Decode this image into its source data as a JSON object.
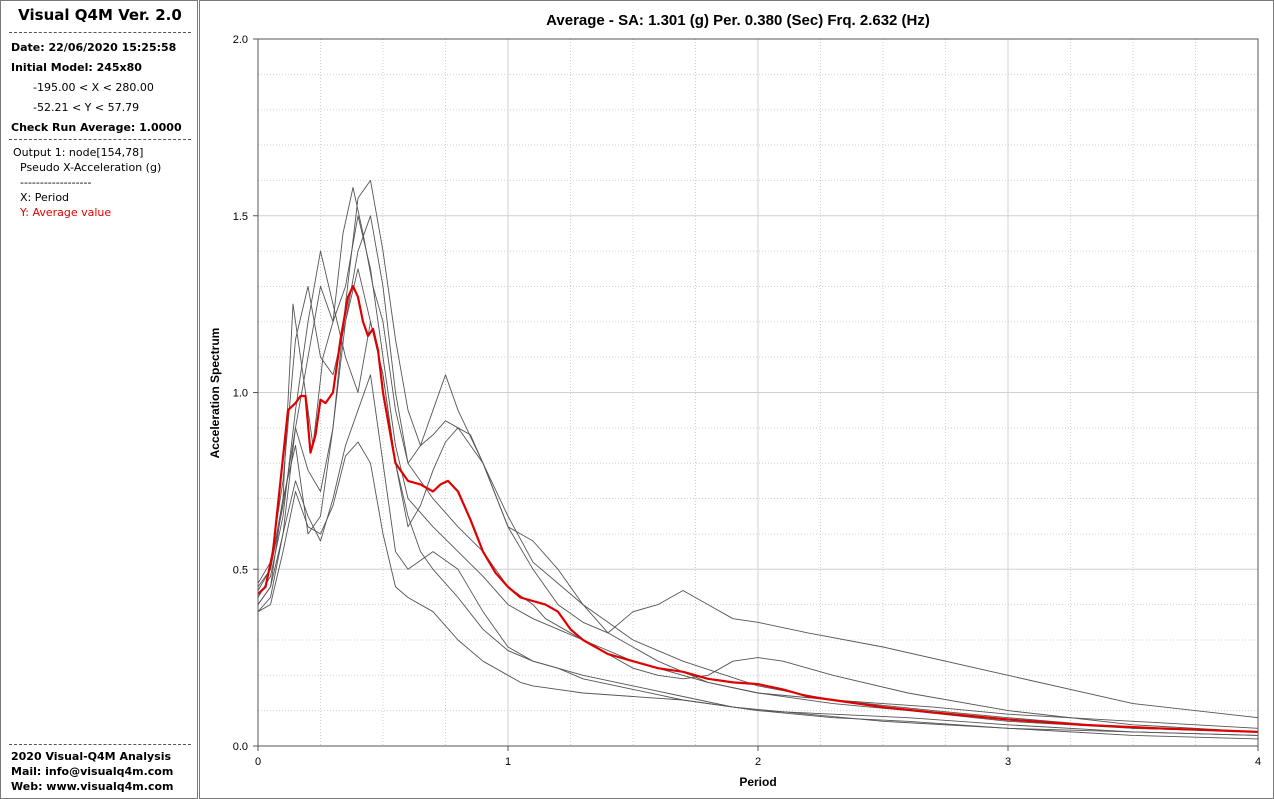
{
  "sidebar": {
    "title": "Visual Q4M Ver. 2.0",
    "date": "Date: 22/06/2020 15:25:58",
    "model": "Initial Model: 245x80",
    "x_range": "-195.00 < X < 280.00",
    "y_range": "-52.21 < Y < 57.79",
    "check_run": "Check Run Average: 1.0000",
    "output": "Output 1: node[154,78]",
    "output_type": "Pseudo X-Acceleration (g)",
    "divider": "------------------",
    "x_label": "X: Period",
    "y_label": "Y: Average value",
    "footer_copyright": "2020 Visual-Q4M Analysis",
    "footer_mail": "Mail: info@visualq4m.com",
    "footer_web": "Web: www.visualq4m.com"
  },
  "colors": {
    "average": "#e00000",
    "records": "#555555",
    "grid": "#d0d0d0"
  },
  "chart_data": {
    "type": "line",
    "title": "Average - SA: 1.301 (g) Per. 0.380 (Sec) Frq. 2.632 (Hz)",
    "xlabel": "Period",
    "ylabel": "Acceleration Spectrum",
    "xlim": [
      0,
      4
    ],
    "ylim": [
      0,
      2
    ],
    "xticks": [
      "0",
      "1",
      "2",
      "3",
      "4"
    ],
    "yticks": [
      "0.0",
      "0.5",
      "1.0",
      "1.5",
      "2.0"
    ],
    "grid": true,
    "average": {
      "x": [
        0,
        0.03,
        0.06,
        0.09,
        0.12,
        0.15,
        0.17,
        0.19,
        0.21,
        0.23,
        0.25,
        0.27,
        0.3,
        0.33,
        0.36,
        0.38,
        0.4,
        0.42,
        0.44,
        0.46,
        0.48,
        0.5,
        0.55,
        0.6,
        0.65,
        0.7,
        0.73,
        0.76,
        0.8,
        0.85,
        0.9,
        0.95,
        1.0,
        1.05,
        1.1,
        1.15,
        1.2,
        1.25,
        1.3,
        1.4,
        1.5,
        1.6,
        1.7,
        1.8,
        1.9,
        2.0,
        2.1,
        2.2,
        2.3,
        2.5,
        2.7,
        3.0,
        3.3,
        3.6,
        4.0
      ],
      "y": [
        0.43,
        0.45,
        0.55,
        0.75,
        0.95,
        0.97,
        0.99,
        0.99,
        0.83,
        0.88,
        0.98,
        0.97,
        1.0,
        1.15,
        1.27,
        1.301,
        1.27,
        1.2,
        1.16,
        1.18,
        1.12,
        1.0,
        0.8,
        0.75,
        0.74,
        0.72,
        0.74,
        0.75,
        0.72,
        0.64,
        0.55,
        0.49,
        0.45,
        0.42,
        0.41,
        0.4,
        0.38,
        0.33,
        0.3,
        0.26,
        0.24,
        0.22,
        0.21,
        0.19,
        0.18,
        0.175,
        0.16,
        0.14,
        0.13,
        0.11,
        0.095,
        0.075,
        0.06,
        0.05,
        0.04
      ]
    },
    "records": [
      {
        "x": [
          0,
          0.05,
          0.1,
          0.14,
          0.18,
          0.22,
          0.26,
          0.3,
          0.34,
          0.38,
          0.42,
          0.46,
          0.5,
          0.55,
          0.6,
          0.65,
          0.7,
          0.75,
          0.8,
          0.9,
          1.0,
          1.1,
          1.2,
          1.3,
          1.4,
          1.5,
          1.6,
          1.7,
          1.8,
          1.9,
          2.0,
          2.2,
          2.5,
          3.0,
          3.5,
          4.0
        ],
        "y": [
          0.4,
          0.45,
          0.7,
          1.25,
          1.05,
          0.85,
          1.1,
          1.2,
          1.45,
          1.58,
          1.45,
          1.3,
          1.2,
          0.95,
          0.8,
          0.85,
          0.95,
          1.05,
          0.95,
          0.8,
          0.62,
          0.5,
          0.4,
          0.35,
          0.32,
          0.38,
          0.4,
          0.44,
          0.4,
          0.36,
          0.35,
          0.32,
          0.28,
          0.2,
          0.12,
          0.08
        ]
      },
      {
        "x": [
          0,
          0.05,
          0.1,
          0.15,
          0.2,
          0.25,
          0.3,
          0.35,
          0.4,
          0.45,
          0.5,
          0.55,
          0.6,
          0.7,
          0.8,
          0.9,
          1.0,
          1.1,
          1.2,
          1.3,
          1.4,
          1.5,
          1.6,
          1.7,
          1.8,
          1.9,
          2.0,
          2.1,
          2.3,
          2.6,
          3.0,
          3.5,
          4.0
        ],
        "y": [
          0.38,
          0.42,
          0.6,
          0.9,
          1.1,
          1.3,
          1.2,
          1.3,
          1.5,
          1.35,
          1.1,
          0.85,
          0.7,
          0.62,
          0.55,
          0.48,
          0.4,
          0.36,
          0.33,
          0.3,
          0.26,
          0.22,
          0.2,
          0.19,
          0.2,
          0.24,
          0.25,
          0.24,
          0.2,
          0.15,
          0.1,
          0.06,
          0.04
        ]
      },
      {
        "x": [
          0,
          0.05,
          0.1,
          0.15,
          0.2,
          0.25,
          0.3,
          0.35,
          0.4,
          0.45,
          0.5,
          0.55,
          0.6,
          0.65,
          0.7,
          0.8,
          0.9,
          1.0,
          1.1,
          1.2,
          1.3,
          1.5,
          1.7,
          1.9,
          2.0,
          2.3,
          2.6,
          3.0,
          3.5,
          4.0
        ],
        "y": [
          0.42,
          0.48,
          0.65,
          0.95,
          1.2,
          1.4,
          1.25,
          1.1,
          1.0,
          1.2,
          1.05,
          0.8,
          0.65,
          0.55,
          0.5,
          0.42,
          0.33,
          0.27,
          0.24,
          0.22,
          0.19,
          0.16,
          0.13,
          0.11,
          0.1,
          0.09,
          0.08,
          0.06,
          0.04,
          0.03
        ]
      },
      {
        "x": [
          0,
          0.05,
          0.1,
          0.15,
          0.2,
          0.25,
          0.3,
          0.35,
          0.4,
          0.45,
          0.5,
          0.55,
          0.6,
          0.65,
          0.7,
          0.75,
          0.8,
          0.9,
          1.0,
          1.1,
          1.2,
          1.3,
          1.4,
          1.5,
          1.7,
          2.0,
          2.3,
          2.7,
          3.0,
          3.5,
          4.0
        ],
        "y": [
          0.45,
          0.5,
          0.7,
          0.85,
          0.6,
          0.65,
          0.9,
          1.25,
          1.55,
          1.6,
          1.4,
          1.15,
          0.95,
          0.85,
          0.88,
          0.92,
          0.9,
          0.8,
          0.65,
          0.52,
          0.46,
          0.4,
          0.35,
          0.3,
          0.24,
          0.17,
          0.13,
          0.1,
          0.08,
          0.05,
          0.04
        ]
      },
      {
        "x": [
          0,
          0.05,
          0.1,
          0.15,
          0.2,
          0.25,
          0.3,
          0.35,
          0.4,
          0.45,
          0.5,
          0.55,
          0.6,
          0.7,
          0.8,
          0.9,
          1.0,
          1.1,
          1.2,
          1.3,
          1.5,
          1.7,
          1.9,
          2.0,
          2.3,
          2.6,
          3.0,
          3.5,
          4.0
        ],
        "y": [
          0.4,
          0.45,
          0.6,
          0.75,
          0.65,
          0.58,
          0.7,
          0.85,
          0.95,
          1.05,
          0.8,
          0.55,
          0.5,
          0.55,
          0.5,
          0.38,
          0.28,
          0.24,
          0.22,
          0.2,
          0.17,
          0.14,
          0.11,
          0.1,
          0.08,
          0.07,
          0.05,
          0.04,
          0.03
        ]
      },
      {
        "x": [
          0,
          0.05,
          0.1,
          0.15,
          0.2,
          0.25,
          0.3,
          0.35,
          0.4,
          0.45,
          0.5,
          0.55,
          0.6,
          0.7,
          0.8,
          0.9,
          1.0,
          1.05,
          1.1,
          1.2,
          1.3,
          1.5,
          1.7,
          1.9,
          2.2,
          2.5,
          3.0,
          3.5,
          4.0
        ],
        "y": [
          0.38,
          0.4,
          0.55,
          0.72,
          0.62,
          0.6,
          0.68,
          0.82,
          0.86,
          0.8,
          0.6,
          0.45,
          0.42,
          0.38,
          0.3,
          0.24,
          0.2,
          0.18,
          0.17,
          0.16,
          0.15,
          0.14,
          0.13,
          0.11,
          0.09,
          0.07,
          0.05,
          0.03,
          0.02
        ]
      },
      {
        "x": [
          0,
          0.05,
          0.1,
          0.15,
          0.2,
          0.25,
          0.3,
          0.35,
          0.4,
          0.45,
          0.5,
          0.55,
          0.6,
          0.65,
          0.7,
          0.75,
          0.8,
          0.85,
          0.9,
          1.0,
          1.05,
          1.1,
          1.2,
          1.3,
          1.4,
          1.6,
          1.8,
          2.0,
          2.3,
          2.7,
          3.0,
          3.5,
          4.0
        ],
        "y": [
          0.44,
          0.5,
          0.68,
          0.9,
          0.78,
          0.72,
          0.9,
          1.2,
          1.35,
          1.2,
          1.05,
          0.8,
          0.62,
          0.68,
          0.78,
          0.86,
          0.9,
          0.88,
          0.8,
          0.62,
          0.6,
          0.58,
          0.5,
          0.4,
          0.32,
          0.24,
          0.18,
          0.15,
          0.13,
          0.11,
          0.09,
          0.07,
          0.05
        ]
      },
      {
        "x": [
          0,
          0.05,
          0.1,
          0.15,
          0.2,
          0.25,
          0.3,
          0.35,
          0.4,
          0.45,
          0.5,
          0.55,
          0.6,
          0.7,
          0.8,
          0.9,
          1.0,
          1.1,
          1.15,
          1.2,
          1.3,
          1.5,
          1.8,
          2.0,
          2.3,
          2.6,
          3.0,
          3.5,
          4.0
        ],
        "y": [
          0.46,
          0.52,
          0.75,
          1.15,
          1.3,
          1.1,
          1.05,
          1.2,
          1.4,
          1.5,
          1.3,
          1.0,
          0.8,
          0.7,
          0.62,
          0.55,
          0.45,
          0.4,
          0.36,
          0.34,
          0.3,
          0.24,
          0.18,
          0.15,
          0.12,
          0.1,
          0.07,
          0.05,
          0.04
        ]
      }
    ]
  }
}
